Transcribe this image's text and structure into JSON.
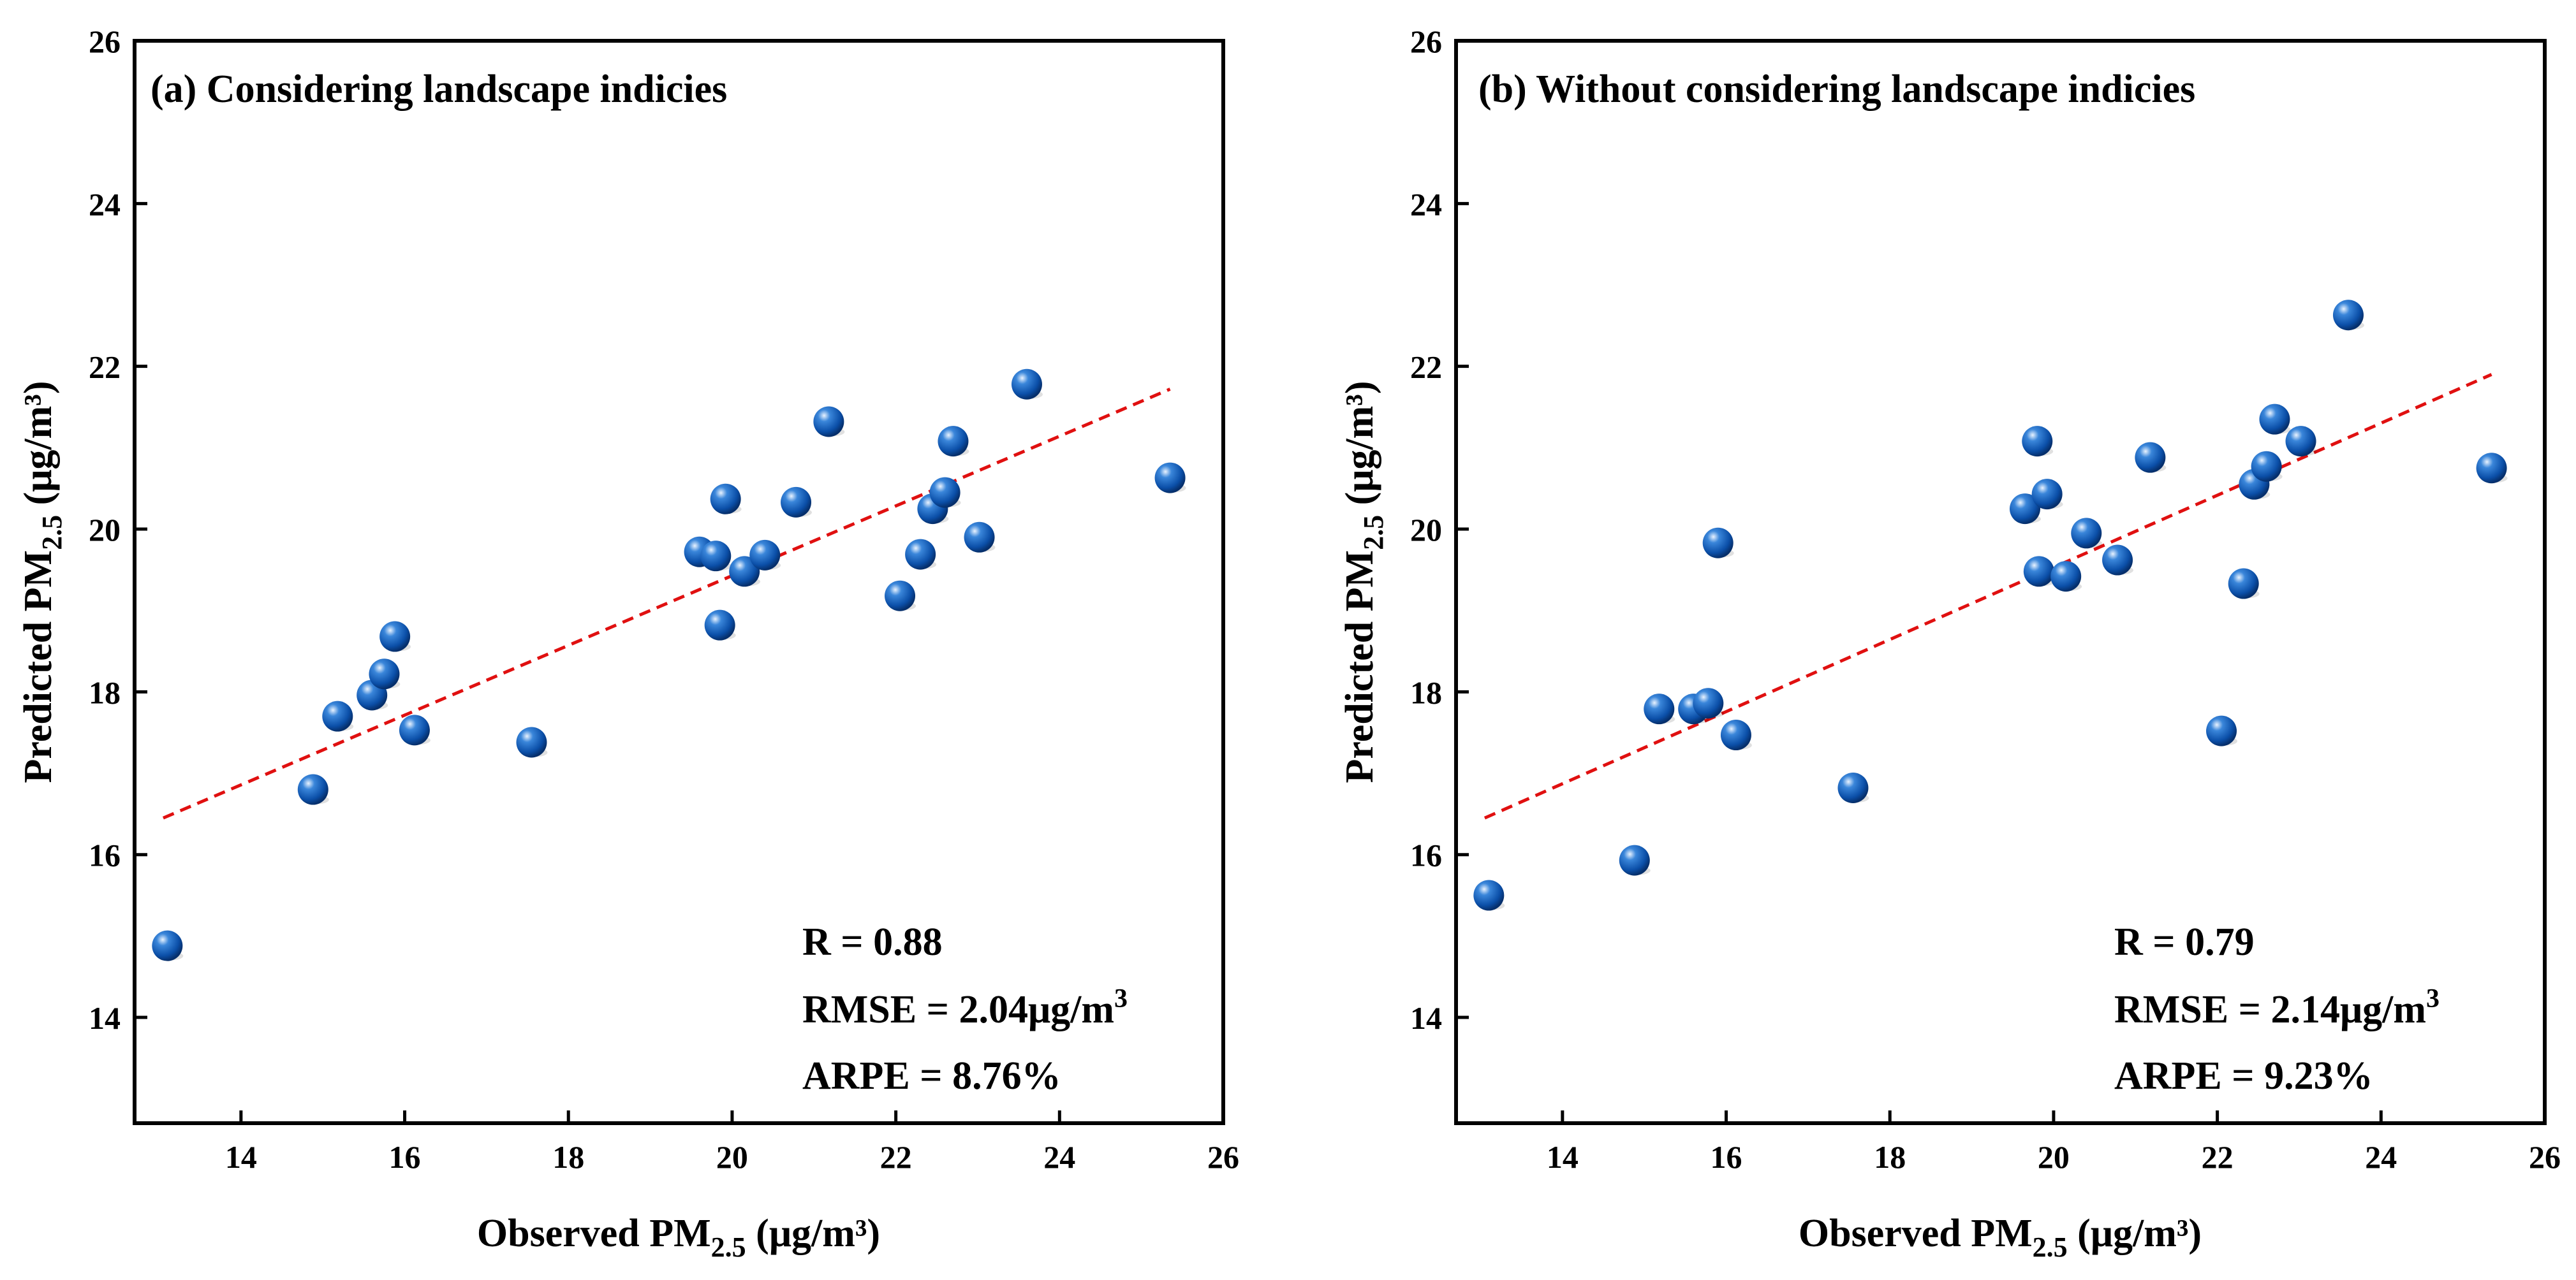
{
  "chart_data": [
    {
      "type": "scatter",
      "title": "(a) Considering landscape indicies",
      "xlabel": {
        "prefix": "Observed PM",
        "sub": "2.5",
        "suffix": " (μg/m³)"
      },
      "ylabel": {
        "prefix": "Predicted PM",
        "sub": "2.5",
        "suffix": " (μg/m³)"
      },
      "xlim": [
        12.7,
        26
      ],
      "ylim": [
        12.7,
        26
      ],
      "xticks": [
        14,
        16,
        18,
        20,
        22,
        24,
        26
      ],
      "yticks": [
        14,
        16,
        18,
        20,
        22,
        24,
        26
      ],
      "points": [
        [
          13.1,
          14.88
        ],
        [
          14.88,
          16.8
        ],
        [
          15.18,
          17.7
        ],
        [
          15.6,
          17.96
        ],
        [
          15.75,
          18.22
        ],
        [
          15.88,
          18.68
        ],
        [
          16.12,
          17.53
        ],
        [
          17.55,
          17.38
        ],
        [
          19.6,
          19.72
        ],
        [
          19.8,
          19.67
        ],
        [
          19.85,
          18.82
        ],
        [
          19.92,
          20.37
        ],
        [
          20.15,
          19.48
        ],
        [
          20.4,
          19.68
        ],
        [
          20.78,
          20.33
        ],
        [
          21.18,
          21.32
        ],
        [
          22.05,
          19.18
        ],
        [
          22.3,
          19.69
        ],
        [
          22.45,
          20.25
        ],
        [
          22.6,
          20.45
        ],
        [
          22.7,
          21.08
        ],
        [
          23.02,
          19.9
        ],
        [
          23.6,
          21.78
        ],
        [
          25.35,
          20.63
        ]
      ],
      "fit_line": {
        "x": [
          13.05,
          25.35
        ],
        "y": [
          16.45,
          21.72
        ],
        "color": "#e01010"
      },
      "stats": {
        "r": "R = 0.88",
        "rmse": "RMSE = 2.04μg/m",
        "rmse_sup": "3",
        "arpe": "ARPE = 8.76%"
      }
    },
    {
      "type": "scatter",
      "title": "(b) Without considering landscape indicies",
      "xlabel": {
        "prefix": "Observed PM",
        "sub": "2.5",
        "suffix": " (μg/m³)"
      },
      "ylabel": {
        "prefix": "Predicted PM",
        "sub": "2.5",
        "suffix": " (μg/m³)"
      },
      "xlim": [
        12.7,
        26
      ],
      "ylim": [
        12.7,
        26
      ],
      "xticks": [
        14,
        16,
        18,
        20,
        22,
        24,
        26
      ],
      "yticks": [
        14,
        16,
        18,
        20,
        22,
        24,
        26
      ],
      "points": [
        [
          13.1,
          15.5
        ],
        [
          14.88,
          15.93
        ],
        [
          15.18,
          17.79
        ],
        [
          15.6,
          17.79
        ],
        [
          15.78,
          17.86
        ],
        [
          15.9,
          19.83
        ],
        [
          16.12,
          17.47
        ],
        [
          17.55,
          16.82
        ],
        [
          19.65,
          20.25
        ],
        [
          19.8,
          21.08
        ],
        [
          19.82,
          19.48
        ],
        [
          19.92,
          20.43
        ],
        [
          20.15,
          19.42
        ],
        [
          20.4,
          19.95
        ],
        [
          20.78,
          19.62
        ],
        [
          21.18,
          20.88
        ],
        [
          22.05,
          17.52
        ],
        [
          22.32,
          19.33
        ],
        [
          22.45,
          20.55
        ],
        [
          22.6,
          20.77
        ],
        [
          22.7,
          21.35
        ],
        [
          23.02,
          21.08
        ],
        [
          23.6,
          22.63
        ],
        [
          25.35,
          20.75
        ]
      ],
      "fit_line": {
        "x": [
          13.05,
          25.35
        ],
        "y": [
          16.45,
          21.9
        ],
        "color": "#e01010"
      },
      "stats": {
        "r": "R = 0.79",
        "rmse": "RMSE = 2.14μg/m",
        "rmse_sup": "3",
        "arpe": "ARPE = 9.23%"
      }
    }
  ]
}
